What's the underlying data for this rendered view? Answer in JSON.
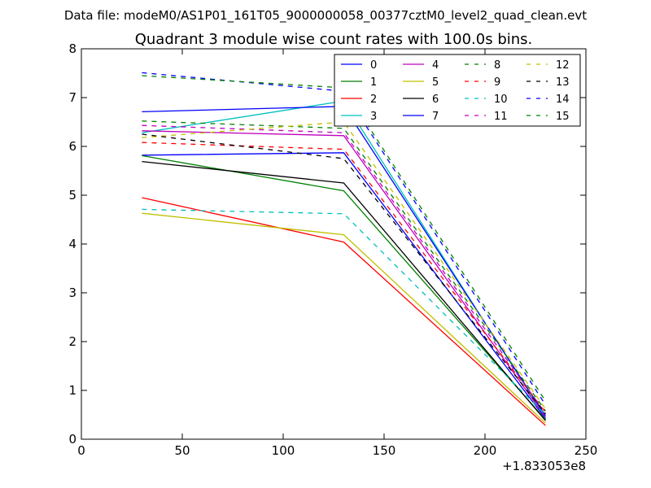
{
  "figure": {
    "suptitle": "Data file: modeM0/AS1P01_161T05_9000000058_00377cztM0_level2_quad_clean.evt"
  },
  "chart_data": {
    "type": "line",
    "title": "Quadrant 3 module wise count rates with 100.0s bins.",
    "xlabel": "",
    "ylabel": "",
    "x_offset_label": "+1.833053e8",
    "xlim": [
      0,
      250
    ],
    "ylim": [
      0,
      8
    ],
    "x_ticks": [
      "0",
      "50",
      "100",
      "150",
      "200",
      "250"
    ],
    "y_ticks": [
      "0",
      "1",
      "2",
      "3",
      "4",
      "5",
      "6",
      "7",
      "8"
    ],
    "grid": false,
    "legend_position": "top-right",
    "legend_columns": 4,
    "x": [
      30,
      130,
      230
    ],
    "series": [
      {
        "name": "0",
        "color": "#0000ff",
        "dash": "solid",
        "values": [
          5.82,
          5.87,
          0.42
        ]
      },
      {
        "name": "1",
        "color": "#008000",
        "dash": "solid",
        "values": [
          5.81,
          5.09,
          0.4
        ]
      },
      {
        "name": "2",
        "color": "#ff0000",
        "dash": "solid",
        "values": [
          4.95,
          4.04,
          0.28
        ]
      },
      {
        "name": "3",
        "color": "#00bfbf",
        "dash": "solid",
        "values": [
          6.28,
          6.93,
          0.44
        ]
      },
      {
        "name": "4",
        "color": "#bf00bf",
        "dash": "solid",
        "values": [
          6.32,
          6.22,
          0.45
        ]
      },
      {
        "name": "5",
        "color": "#bfbf00",
        "dash": "solid",
        "values": [
          4.63,
          4.19,
          0.33
        ]
      },
      {
        "name": "6",
        "color": "#000000",
        "dash": "solid",
        "values": [
          5.69,
          5.25,
          0.38
        ]
      },
      {
        "name": "7",
        "color": "#0000ff",
        "dash": "solid",
        "values": [
          6.71,
          6.82,
          0.48
        ]
      },
      {
        "name": "8",
        "color": "#008000",
        "dash": "dashed",
        "values": [
          6.52,
          6.37,
          0.58
        ]
      },
      {
        "name": "9",
        "color": "#ff0000",
        "dash": "dashed",
        "values": [
          6.08,
          5.94,
          0.55
        ]
      },
      {
        "name": "10",
        "color": "#00bfbf",
        "dash": "dashed",
        "values": [
          4.71,
          4.62,
          0.5
        ]
      },
      {
        "name": "11",
        "color": "#bf00bf",
        "dash": "dashed",
        "values": [
          6.43,
          6.28,
          0.53
        ]
      },
      {
        "name": "12",
        "color": "#bfbf00",
        "dash": "dashed",
        "values": [
          6.18,
          6.5,
          0.62
        ]
      },
      {
        "name": "13",
        "color": "#000000",
        "dash": "dashed",
        "values": [
          6.25,
          5.75,
          0.52
        ]
      },
      {
        "name": "14",
        "color": "#0000ff",
        "dash": "dashed",
        "values": [
          7.51,
          7.13,
          0.7
        ]
      },
      {
        "name": "15",
        "color": "#008000",
        "dash": "dashed",
        "values": [
          7.45,
          7.2,
          0.78
        ]
      }
    ]
  }
}
